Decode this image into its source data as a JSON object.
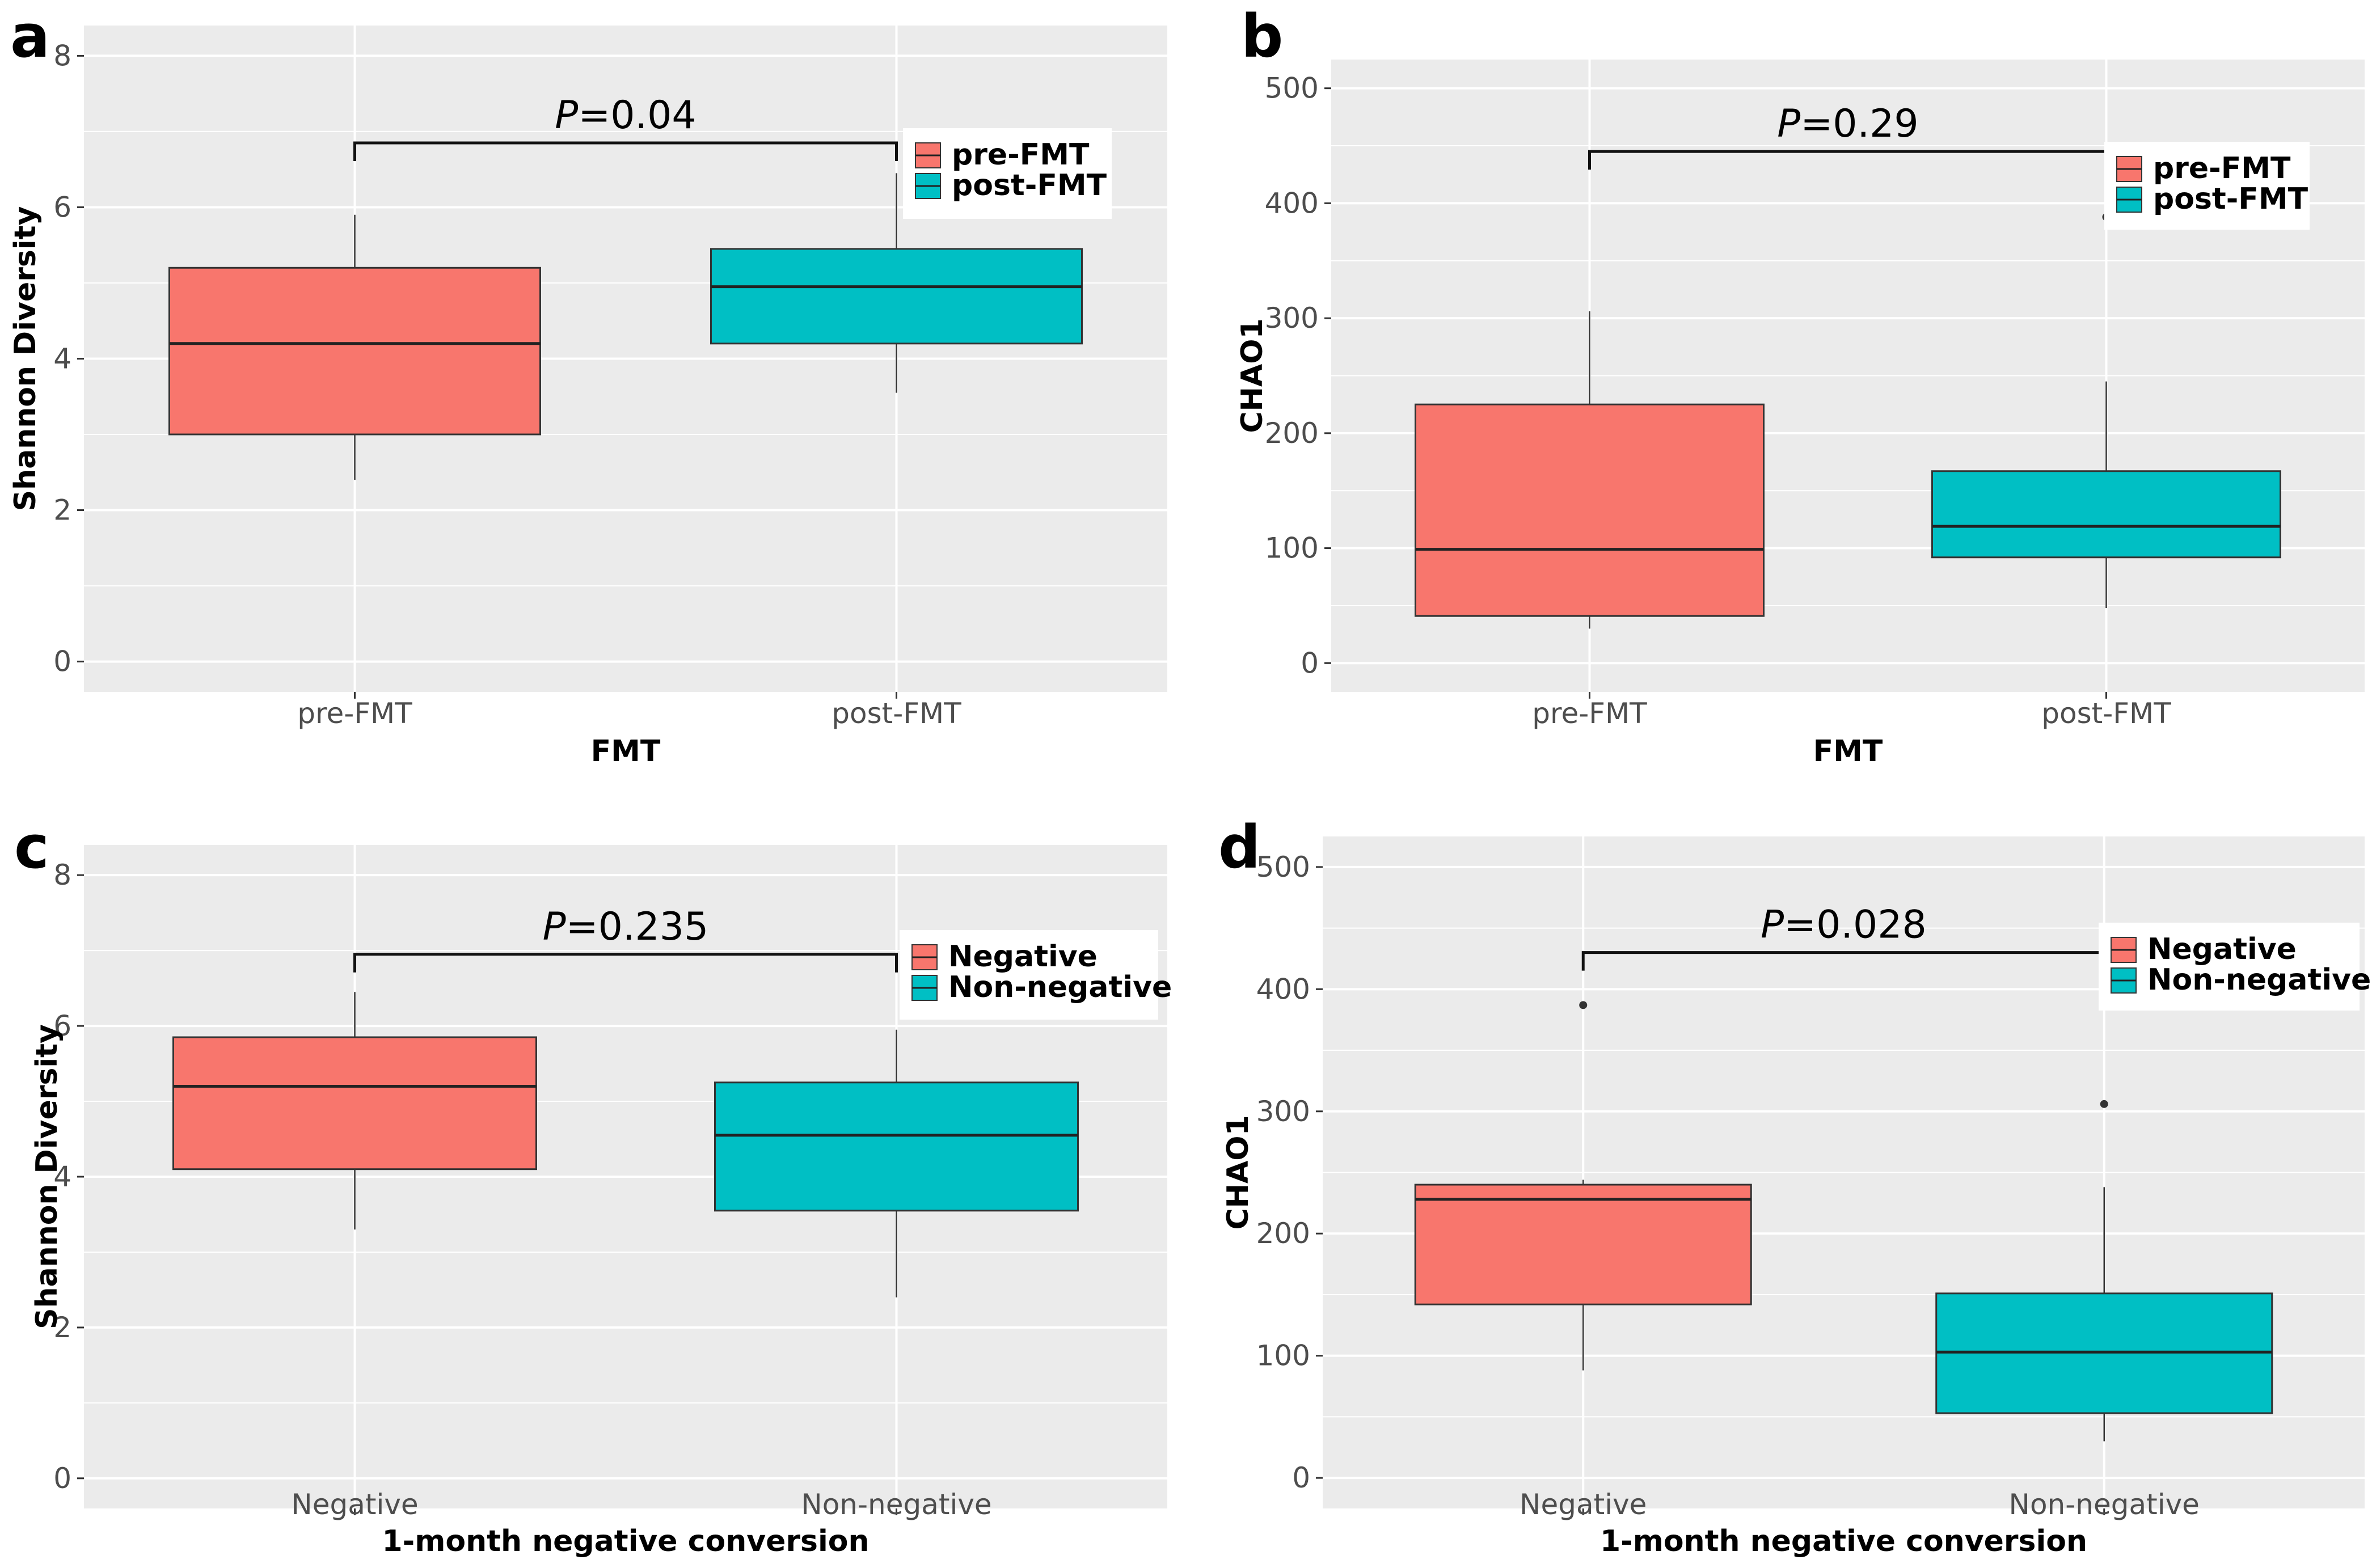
{
  "colors": {
    "panel_bg": "#EBEBEB",
    "grid": "#FFFFFF",
    "group1": "#F8766D",
    "group2": "#00BFC4",
    "outlier": "#333333"
  },
  "chart_data": [
    {
      "type": "box",
      "letter": "a",
      "title": "",
      "xlabel": "FMT",
      "ylabel": "Shannon Diversity",
      "ylim": [
        -0.4,
        8.4
      ],
      "yticks": [
        0,
        2,
        4,
        6,
        8
      ],
      "ytick_labels": [
        "0",
        "2",
        "4",
        "6",
        "8"
      ],
      "categories": [
        "pre-FMT",
        "post-FMT"
      ],
      "series": [
        {
          "name": "pre-FMT",
          "min": 2.4,
          "q1": 3.0,
          "median": 4.2,
          "q3": 5.2,
          "max": 5.9,
          "outliers": []
        },
        {
          "name": "post-FMT",
          "min": 3.55,
          "q1": 4.2,
          "median": 4.95,
          "q3": 5.45,
          "max": 6.45,
          "outliers": []
        }
      ],
      "comparison": {
        "p_label": "P",
        "p_value": "=0.04",
        "bracket_y": 6.85
      },
      "legend": {
        "entries": [
          "pre-FMT",
          "post-FMT"
        ],
        "position": "top-right"
      }
    },
    {
      "type": "box",
      "letter": "b",
      "title": "",
      "xlabel": "FMT",
      "ylabel": "CHAO1",
      "ylim": [
        -25,
        525
      ],
      "yticks": [
        0,
        100,
        200,
        300,
        400,
        500
      ],
      "ytick_labels": [
        "0",
        "100",
        "200",
        "300",
        "400",
        "500"
      ],
      "categories": [
        "pre-FMT",
        "post-FMT"
      ],
      "series": [
        {
          "name": "pre-FMT",
          "min": 30,
          "q1": 41,
          "median": 99,
          "q3": 225,
          "max": 306,
          "outliers": []
        },
        {
          "name": "post-FMT",
          "min": 48,
          "q1": 92,
          "median": 119,
          "q3": 167,
          "max": 245,
          "outliers": [
            388
          ]
        }
      ],
      "comparison": {
        "p_label": "P",
        "p_value": "=0.29",
        "bracket_y": 445
      },
      "legend": {
        "entries": [
          "pre-FMT",
          "post-FMT"
        ],
        "position": "top-right"
      }
    },
    {
      "type": "box",
      "letter": "c",
      "title": "",
      "xlabel": "1-month negative conversion",
      "ylabel": "Shannon Diversity",
      "ylim": [
        -0.4,
        8.4
      ],
      "yticks": [
        0,
        2,
        4,
        6,
        8
      ],
      "ytick_labels": [
        "0",
        "2",
        "4",
        "6",
        "8"
      ],
      "categories": [
        "Negative",
        "Non-negative"
      ],
      "series": [
        {
          "name": "Negative",
          "min": 3.3,
          "q1": 4.1,
          "median": 5.2,
          "q3": 5.85,
          "max": 6.45,
          "outliers": []
        },
        {
          "name": "Non-negative",
          "min": 2.4,
          "q1": 3.55,
          "median": 4.55,
          "q3": 5.25,
          "max": 5.95,
          "outliers": []
        }
      ],
      "comparison": {
        "p_label": "P",
        "p_value": "=0.235",
        "bracket_y": 6.95
      },
      "legend": {
        "entries": [
          "Negative",
          "Non-negative"
        ],
        "position": "top-right"
      }
    },
    {
      "type": "box",
      "letter": "d",
      "title": "",
      "xlabel": "1-month negative conversion",
      "ylabel": "CHAO1",
      "ylim": [
        -25,
        525
      ],
      "yticks": [
        0,
        100,
        200,
        300,
        400,
        500
      ],
      "ytick_labels": [
        "0",
        "100",
        "200",
        "300",
        "400",
        "500"
      ],
      "categories": [
        "Negative",
        "Non-negative"
      ],
      "series": [
        {
          "name": "Negative",
          "min": 88,
          "q1": 142,
          "median": 228,
          "q3": 240,
          "max": 244,
          "outliers": [
            387
          ]
        },
        {
          "name": "Non-negative",
          "min": 30,
          "q1": 53,
          "median": 103,
          "q3": 151,
          "max": 238,
          "outliers": [
            306
          ]
        }
      ],
      "comparison": {
        "p_label": "P",
        "p_value": "=0.028",
        "bracket_y": 430
      },
      "legend": {
        "entries": [
          "Negative",
          "Non-negative"
        ],
        "position": "top-right"
      }
    }
  ]
}
